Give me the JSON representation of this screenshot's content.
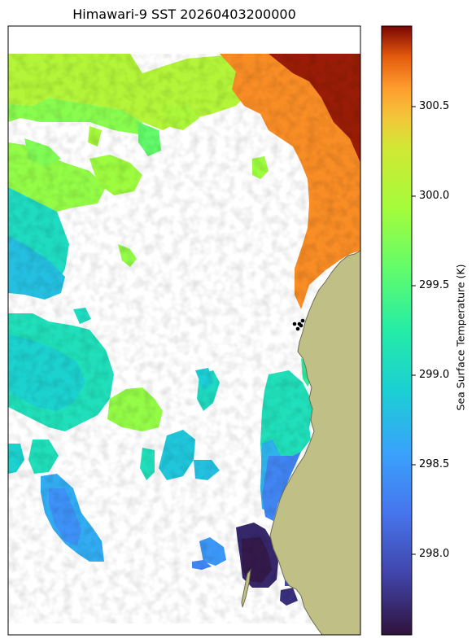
{
  "title": "Himawari-9 SST 20260403200000",
  "colorbar": {
    "label": "Sea Surface Temperature (K)",
    "min": 297.55,
    "max": 300.95,
    "ticks": [
      {
        "value": 298.0,
        "label": "298.0"
      },
      {
        "value": 298.5,
        "label": "298.5"
      },
      {
        "value": 299.0,
        "label": "299.0"
      },
      {
        "value": 299.5,
        "label": "299.5"
      },
      {
        "value": 300.0,
        "label": "300.0"
      },
      {
        "value": 300.5,
        "label": "300.5"
      }
    ],
    "colormap": "turbo"
  },
  "colors": {
    "land": "#bfbf86",
    "coast": "#6e6e52",
    "station": "#000000"
  },
  "stations": {
    "count": 5
  }
}
